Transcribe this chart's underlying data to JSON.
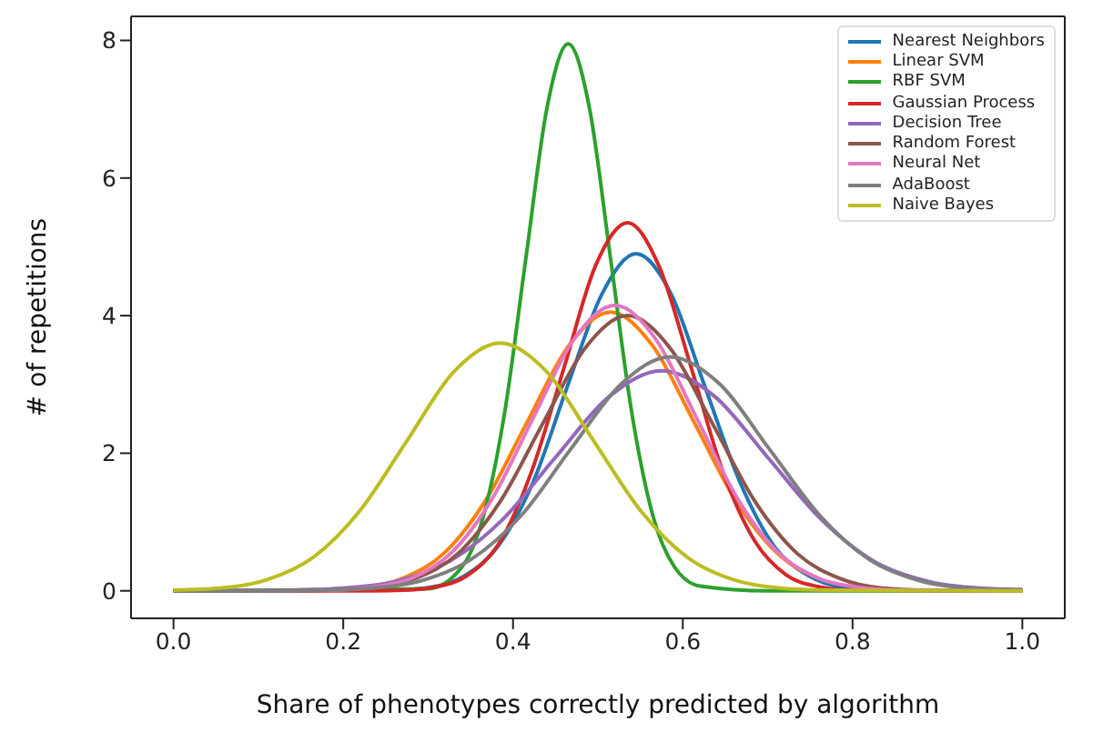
{
  "chart_data": {
    "type": "line",
    "xlabel": "Share of phenotypes correctly predicted by algorithm",
    "ylabel": "# of repetitions",
    "xlim": [
      -0.05,
      1.05
    ],
    "ylim": [
      -0.4,
      8.35
    ],
    "xticks": [
      {
        "value": 0,
        "label": "0.0"
      },
      {
        "value": 0.2,
        "label": "0.2"
      },
      {
        "value": 0.4,
        "label": "0.4"
      },
      {
        "value": 0.6,
        "label": "0.6"
      },
      {
        "value": 0.8,
        "label": "0.8"
      },
      {
        "value": 1,
        "label": "1.0"
      }
    ],
    "yticks": [
      0,
      2,
      4,
      6,
      8
    ],
    "grid": false,
    "legend": "top right",
    "marker": "none",
    "line_style": "solid",
    "series": [
      {
        "name": "Nearest Neighbors",
        "color": "#1f77b4",
        "x": [
          0.262,
          0.302,
          0.343,
          0.383,
          0.424,
          0.464,
          0.505,
          0.545,
          0.586,
          0.626,
          0.667,
          0.707,
          0.748,
          0.788,
          0.829,
          1
        ],
        "values": [
          0.01,
          0.05,
          0.22,
          0.66,
          1.59,
          2.97,
          4.32,
          4.9,
          4.32,
          2.97,
          1.59,
          0.66,
          0.22,
          0.05,
          0.01,
          0
        ]
      },
      {
        "name": "Linear SVM",
        "color": "#ff7f0e",
        "x": [
          0.221,
          0.27,
          0.319,
          0.368,
          0.417,
          0.466,
          0.515,
          0.564,
          0.613,
          0.662,
          0.711,
          0.76
        ],
        "values": [
          0.04,
          0.18,
          0.55,
          1.32,
          2.46,
          3.57,
          4.05,
          3.57,
          2.46,
          1.32,
          0.55,
          0.18
        ]
      },
      {
        "name": "RBF SVM",
        "color": "#2ca02c",
        "x": [
          0,
          0.3,
          0.34,
          0.365,
          0.39,
          0.415,
          0.44,
          0.465,
          0.49,
          0.515,
          0.54,
          0.565,
          0.59,
          0.62,
          0.7,
          1
        ],
        "values": [
          0,
          0.03,
          0.35,
          1.08,
          2.58,
          4.82,
          7.02,
          7.95,
          7.02,
          4.82,
          2.58,
          1.08,
          0.35,
          0.07,
          0,
          0
        ]
      },
      {
        "name": "Gaussian Process",
        "color": "#d62728",
        "x": [
          0,
          0.235,
          0.272,
          0.31,
          0.347,
          0.385,
          0.422,
          0.46,
          0.497,
          0.535,
          0.572,
          0.61,
          0.647,
          0.685,
          0.722,
          0.76,
          0.797,
          1
        ],
        "values": [
          0,
          0,
          0.01,
          0.06,
          0.23,
          0.72,
          1.74,
          3.24,
          4.72,
          5.35,
          4.72,
          3.24,
          1.74,
          0.72,
          0.23,
          0.06,
          0.01,
          0
        ]
      },
      {
        "name": "Decision Tree",
        "color": "#9467bd",
        "x": [
          0,
          0.075,
          0.138,
          0.2,
          0.263,
          0.325,
          0.388,
          0.45,
          0.513,
          0.575,
          0.638,
          0.7,
          0.763,
          0.825,
          0.888,
          0.95,
          1
        ],
        "values": [
          0,
          0,
          0.01,
          0.04,
          0.14,
          0.43,
          1.04,
          1.94,
          2.82,
          3.2,
          2.82,
          1.94,
          1.04,
          0.43,
          0.14,
          0.04,
          0.02
        ]
      },
      {
        "name": "Random Forest",
        "color": "#8c564b",
        "x": [
          0,
          0.135,
          0.185,
          0.235,
          0.285,
          0.335,
          0.385,
          0.435,
          0.485,
          0.535,
          0.585,
          0.635,
          0.685,
          0.735,
          0.785,
          0.835,
          0.885,
          1
        ],
        "values": [
          0,
          0,
          0.01,
          0.04,
          0.18,
          0.54,
          1.3,
          2.43,
          3.53,
          4.0,
          3.53,
          2.43,
          1.3,
          0.54,
          0.18,
          0.04,
          0.01,
          0
        ]
      },
      {
        "name": "Neural Net",
        "color": "#e377c2",
        "x": [
          0.184,
          0.232,
          0.28,
          0.328,
          0.376,
          0.424,
          0.472,
          0.52,
          0.568,
          0.616,
          0.664,
          0.712,
          0.76,
          0.808,
          0.856,
          1
        ],
        "values": [
          0.01,
          0.05,
          0.18,
          0.56,
          1.35,
          2.52,
          3.66,
          4.15,
          3.66,
          2.52,
          1.35,
          0.56,
          0.18,
          0.05,
          0.01,
          0
        ]
      },
      {
        "name": "AdaBoost",
        "color": "#7f7f7f",
        "x": [
          0,
          0.117,
          0.176,
          0.234,
          0.293,
          0.351,
          0.41,
          0.468,
          0.527,
          0.585,
          0.644,
          0.702,
          0.761,
          0.819,
          0.878,
          0.936,
          1
        ],
        "values": [
          0,
          0,
          0.01,
          0.04,
          0.15,
          0.46,
          1.1,
          2.06,
          3.0,
          3.4,
          3.0,
          2.06,
          1.1,
          0.46,
          0.15,
          0.04,
          0.01
        ]
      },
      {
        "name": "Naive Bayes",
        "color": "#bcbd22",
        "x": [
          0,
          0.055,
          0.11,
          0.165,
          0.22,
          0.275,
          0.33,
          0.385,
          0.44,
          0.495,
          0.55,
          0.605,
          0.66,
          0.715,
          0.77,
          1
        ],
        "values": [
          0.01,
          0.04,
          0.16,
          0.49,
          1.17,
          2.18,
          3.18,
          3.6,
          3.18,
          2.18,
          1.17,
          0.49,
          0.16,
          0.04,
          0.01,
          0
        ]
      }
    ]
  }
}
